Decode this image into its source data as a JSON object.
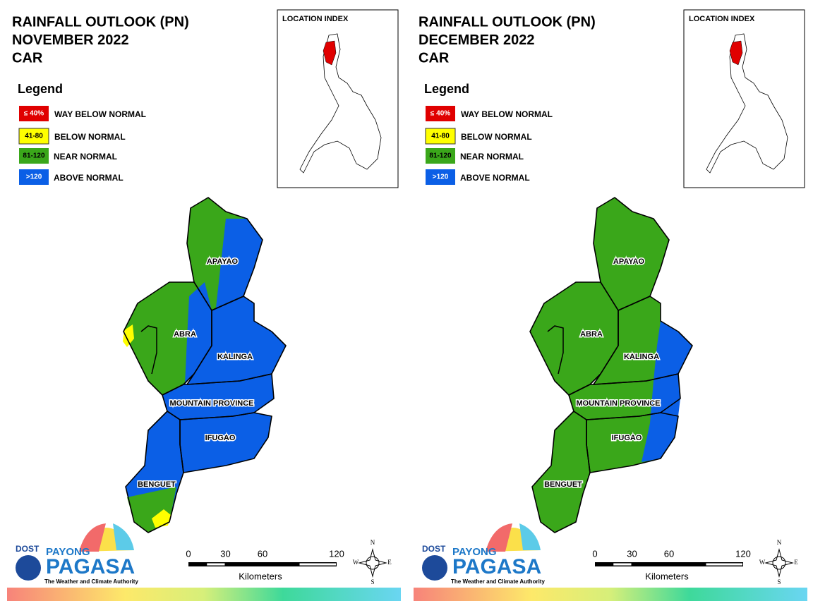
{
  "panels": [
    {
      "title": [
        "RAINFALL OUTLOOK (PN)",
        "NOVEMBER 2022",
        "CAR"
      ],
      "legend": {
        "title": "Legend",
        "items": [
          {
            "label": "≤ 40%",
            "text": "WAY BELOW NORMAL",
            "color": "#e00000"
          },
          {
            "label": "41-80",
            "text": "BELOW NORMAL",
            "color": "#ffff00"
          },
          {
            "label": "81-120",
            "text": "NEAR NORMAL",
            "color": "#3aa71a"
          },
          {
            "label": ">120",
            "text": "ABOVE NORMAL",
            "color": "#0b5fe6"
          }
        ]
      },
      "location_index": "LOCATION INDEX",
      "provinces": [
        "APAYAO",
        "ABRA",
        "KALINGA",
        "MOUNTAIN PROVINCE",
        "IFUGAO",
        "BENGUET"
      ],
      "scale": {
        "ticks": [
          0,
          30,
          60,
          120
        ],
        "unit": "Kilometers"
      },
      "compass": [
        "N",
        "E",
        "S",
        "W"
      ],
      "logo": {
        "agency": "DOST",
        "brand": "PAYONG",
        "name": "PAGASA",
        "tagline": "The Weather and Climate Authority"
      }
    },
    {
      "title": [
        "RAINFALL OUTLOOK (PN)",
        "DECEMBER 2022",
        "CAR"
      ],
      "legend": {
        "title": "Legend",
        "items": [
          {
            "label": "≤ 40%",
            "text": "WAY BELOW NORMAL",
            "color": "#e00000"
          },
          {
            "label": "41-80",
            "text": "BELOW NORMAL",
            "color": "#ffff00"
          },
          {
            "label": "81-120",
            "text": "NEAR NORMAL",
            "color": "#3aa71a"
          },
          {
            "label": ">120",
            "text": "ABOVE NORMAL",
            "color": "#0b5fe6"
          }
        ]
      },
      "location_index": "LOCATION INDEX",
      "provinces": [
        "APAYAO",
        "ABRA",
        "KALINGA",
        "MOUNTAIN PROVINCE",
        "IFUGAO",
        "BENGUET"
      ],
      "scale": {
        "ticks": [
          0,
          30,
          60,
          120
        ],
        "unit": "Kilometers"
      },
      "compass": [
        "N",
        "E",
        "S",
        "W"
      ],
      "logo": {
        "agency": "DOST",
        "brand": "PAYONG",
        "name": "PAGASA",
        "tagline": "The Weather and Climate Authority"
      }
    }
  ]
}
